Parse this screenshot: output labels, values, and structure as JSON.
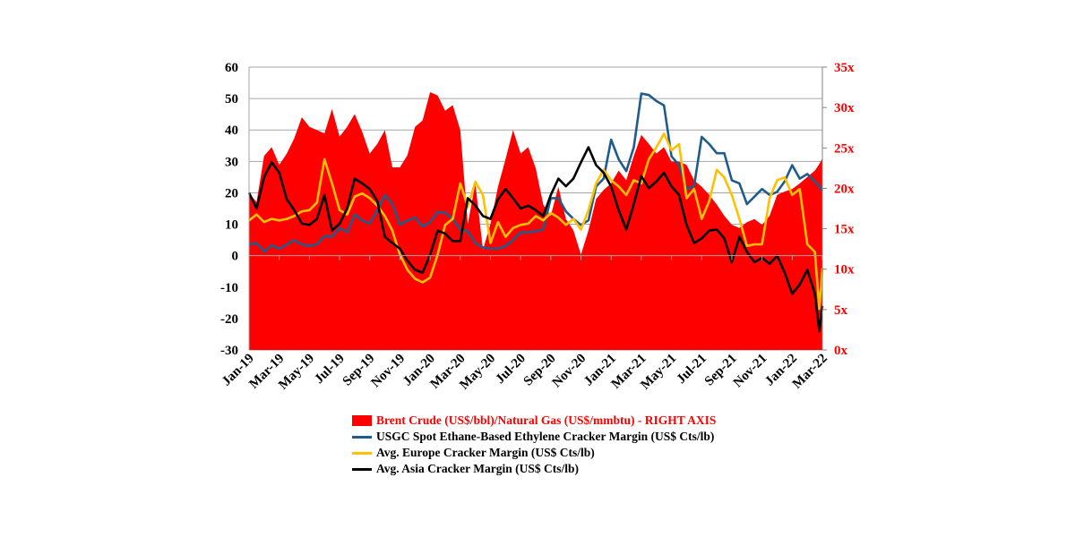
{
  "chart_data": {
    "type": "line",
    "title": "",
    "xlabel": "",
    "ylabel": "",
    "ylim": [
      -30,
      60
    ],
    "y_ticks": [
      "60",
      "50",
      "40",
      "30",
      "20",
      "10",
      "0",
      "-10",
      "-20",
      "-30"
    ],
    "y2lim": [
      0,
      35
    ],
    "y2_ticks": [
      "35x",
      "30x",
      "25x",
      "20x",
      "15x",
      "10x",
      "5x",
      "0x"
    ],
    "grid": true,
    "legend_position": "bottom",
    "x_unit": "months since Jan-19",
    "x_tick_labels": [
      "Jan-19",
      "Mar-19",
      "May-19",
      "Jul-19",
      "Sep-19",
      "Nov-19",
      "Jan-20",
      "Mar-20",
      "May-20",
      "Jul-20",
      "Sep-20",
      "Nov-20",
      "Jan-21",
      "Mar-21",
      "May-21",
      "Jul-21",
      "Sep-21",
      "Nov-21",
      "Jan-22",
      "Mar-22"
    ],
    "x": [
      0,
      0.5,
      1,
      1.5,
      2,
      2.5,
      3,
      3.5,
      4,
      4.5,
      5,
      5.5,
      6,
      6.5,
      7,
      7.5,
      8,
      8.5,
      9,
      9.5,
      10,
      10.5,
      11,
      11.5,
      12,
      12.5,
      13,
      13.5,
      14,
      14.5,
      15,
      15.5,
      16,
      16.5,
      17,
      17.5,
      18,
      18.5,
      19,
      19.5,
      20,
      20.5,
      21,
      21.5,
      22,
      22.5,
      23,
      23.5,
      24,
      24.5,
      25,
      25.5,
      26,
      26.5,
      27,
      27.5,
      28,
      28.5,
      29,
      29.5,
      30,
      30.5,
      31,
      31.5,
      32,
      32.5,
      33,
      33.5,
      34,
      34.5,
      35,
      35.5,
      36,
      36.5,
      37,
      37.5,
      37.8,
      38
    ],
    "series": [
      {
        "name": "Brent Crude (US$/bbl)/Natural Gas (US$/mmbtu) - RIGHT AXIS",
        "type": "area",
        "axis": "right",
        "color": "#ff0000",
        "values": [
          19.4,
          18.3,
          24.0,
          25.1,
          22.9,
          24.3,
          26.2,
          28.8,
          27.6,
          27.2,
          26.8,
          29.8,
          26.4,
          27.6,
          29.2,
          27.0,
          24.3,
          25.5,
          27.2,
          22.6,
          22.6,
          24.1,
          27.6,
          28.4,
          31.9,
          31.5,
          29.6,
          30.3,
          27.2,
          15.6,
          20.6,
          12.4,
          15.6,
          20.2,
          23.6,
          27.2,
          24.3,
          25.1,
          22.5,
          18.0,
          16.6,
          20.2,
          16.2,
          14.8,
          11.8,
          14.8,
          18.7,
          19.8,
          20.6,
          22.2,
          21.0,
          24.0,
          26.6,
          25.5,
          24.3,
          25.1,
          23.3,
          23.3,
          22.9,
          21.0,
          20.2,
          19.2,
          18.0,
          16.6,
          15.5,
          15.1,
          15.8,
          16.2,
          15.5,
          16.6,
          19.2,
          19.6,
          19.9,
          20.6,
          21.4,
          22.2,
          23.0,
          23.7
        ]
      },
      {
        "name": "USGC Spot Ethane-Based Ethylene Cracker Margin (US$ Cts/lb)",
        "type": "line",
        "axis": "left",
        "color": "#1f5b8c",
        "values": [
          3.6,
          4,
          1.3,
          3.3,
          2.2,
          3.6,
          4.9,
          3.6,
          3.1,
          3.6,
          6.2,
          6,
          8.8,
          7.4,
          13.1,
          11.2,
          10.2,
          14.5,
          19.3,
          16.4,
          9.8,
          11.2,
          12.1,
          9.3,
          10.7,
          13.9,
          13.6,
          11.7,
          8.3,
          7.8,
          4,
          2.6,
          2.2,
          2.2,
          3.1,
          5,
          7.4,
          7.4,
          7.8,
          8.3,
          18.3,
          18.3,
          14.1,
          11.7,
          9.8,
          11.2,
          22,
          24.5,
          36.9,
          30.7,
          26.9,
          34.5,
          51.6,
          51.1,
          49.2,
          47.8,
          31.6,
          28.8,
          21.2,
          22.1,
          37.8,
          35.5,
          32.6,
          32.6,
          24,
          23,
          16.4,
          18.8,
          21.2,
          19.3,
          20.3,
          23.6,
          28.8,
          24.5,
          26,
          23.6,
          22,
          20.7
        ]
      },
      {
        "name": "Avg. Europe Cracker Margin (US$ Cts/lb)",
        "type": "line",
        "axis": "left",
        "color": "#ffc000",
        "values": [
          11.2,
          13.1,
          10.7,
          11.7,
          11.2,
          11.7,
          12.6,
          14.1,
          14.5,
          16.9,
          30.7,
          23,
          14.5,
          13.1,
          18.8,
          19.8,
          18.3,
          15.9,
          12.6,
          8,
          0.3,
          -4.5,
          -7.4,
          -8.5,
          -7,
          0.3,
          9.8,
          11.7,
          23,
          15.5,
          23.5,
          19.3,
          4,
          10.7,
          6,
          8.8,
          9.8,
          10.2,
          12.6,
          11.2,
          13.6,
          12.1,
          9.8,
          11.7,
          8.3,
          14.5,
          23,
          27.3,
          24,
          22,
          19.3,
          24,
          23,
          30.7,
          34.5,
          38.8,
          33.5,
          35.5,
          18.3,
          21.2,
          11.7,
          17.4,
          27.3,
          24.9,
          19.3,
          11.7,
          3.1,
          3.6,
          3.6,
          18.3,
          24,
          24.9,
          19.3,
          21.2,
          3.6,
          1.2,
          -16.9,
          -4
        ]
      },
      {
        "name": "Avg. Asia Cracker Margin (US$ Cts/lb)",
        "type": "line",
        "axis": "left",
        "color": "#000000",
        "values": [
          20,
          15,
          25,
          29.7,
          26.4,
          17.9,
          14.5,
          10.2,
          9.8,
          11.7,
          19.3,
          8,
          10.2,
          15,
          24.5,
          23,
          21.2,
          17.4,
          6,
          4,
          2.2,
          -1.6,
          -4.5,
          -5.4,
          0.3,
          8,
          7,
          4.6,
          4.6,
          18.3,
          16,
          12.6,
          11.7,
          17.9,
          21.2,
          18.3,
          15,
          15.9,
          14.5,
          12.6,
          19.3,
          24.5,
          22.1,
          24.5,
          29.7,
          34.5,
          28.8,
          26.4,
          22,
          14.5,
          8.3,
          16.4,
          25.3,
          21.5,
          23.6,
          26.4,
          22,
          19.3,
          9.8,
          4,
          5.5,
          8,
          8.3,
          5.5,
          -2.1,
          6,
          1.2,
          -2.1,
          -0.7,
          -2.6,
          0,
          -5.4,
          -12.1,
          -9.2,
          -4.5,
          -12.1,
          -24,
          -16
        ]
      }
    ]
  }
}
